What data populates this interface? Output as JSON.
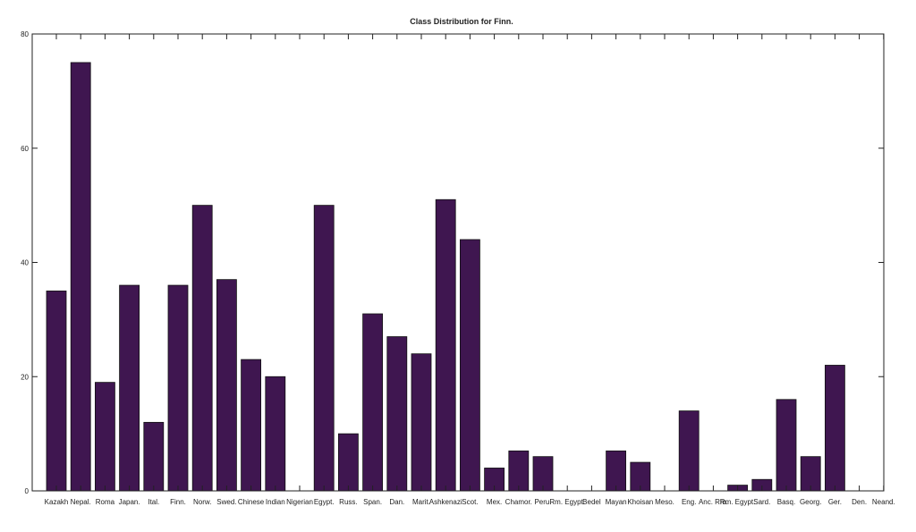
{
  "chart_data": {
    "type": "bar",
    "title": "Class Distribution for Finn.",
    "xlabel": "",
    "ylabel": "",
    "ylim": [
      0,
      80
    ],
    "yticks": [
      0,
      20,
      40,
      60,
      80
    ],
    "grid": false,
    "bar_color": "#3f1650",
    "categories": [
      "Kazakh",
      "Nepal.",
      "Roma",
      "Japan.",
      "Ital.",
      "Finn.",
      "Norw.",
      "Swed.",
      "Chinese",
      "Indian",
      "Nigerian",
      "Egypt.",
      "Russ.",
      "Span.",
      "Dan.",
      "Marit.",
      "Ashkenazi",
      "Scot.",
      "Mex.",
      "Chamor.",
      "Peru.",
      "Rm. Egypt.",
      "Bedel",
      "Mayan",
      "Khoisan",
      "Meso.",
      "Eng.",
      "Anc. Rm.",
      "Rm. Egypt.",
      "Sard.",
      "Basq.",
      "Georg.",
      "Ger.",
      "Den.",
      "Neand."
    ],
    "values": [
      35,
      75,
      19,
      36,
      12,
      36,
      50,
      37,
      23,
      20,
      0,
      50,
      10,
      31,
      27,
      24,
      51,
      44,
      4,
      7,
      6,
      0,
      0,
      7,
      5,
      0,
      14,
      0,
      1,
      2,
      16,
      6,
      22,
      0,
      0
    ]
  }
}
